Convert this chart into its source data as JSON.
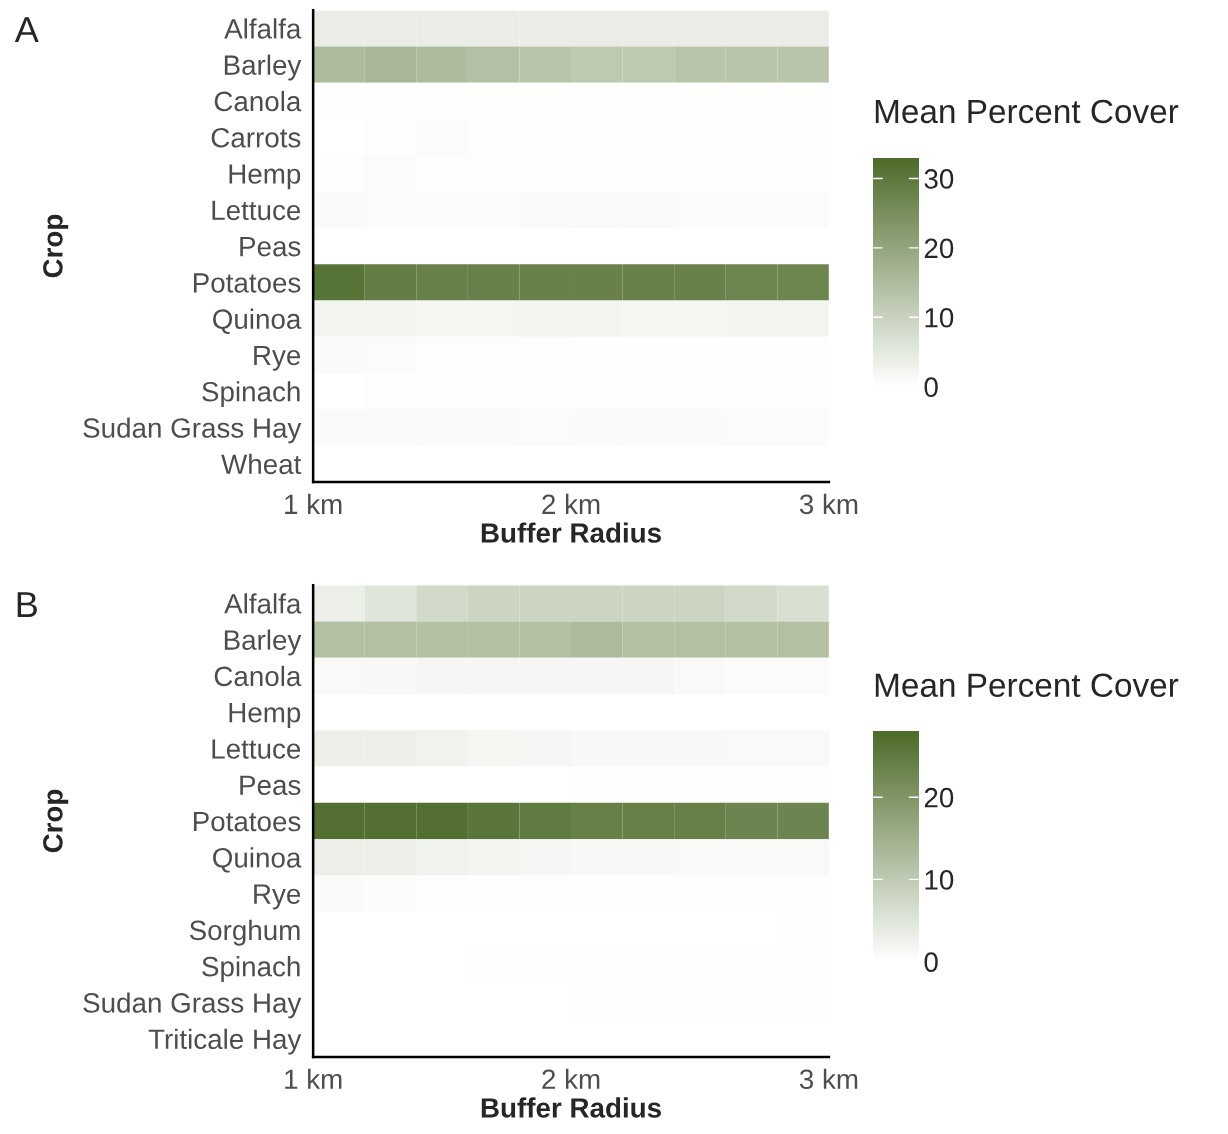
{
  "chart_data": [
    {
      "type": "heatmap",
      "title": "A",
      "xlabel": "Buffer Radius",
      "ylabel": "Crop",
      "clabel": "Mean Percent Cover",
      "x": [
        1.1,
        1.3,
        1.5,
        1.7,
        1.9,
        2.1,
        2.3,
        2.5,
        2.7,
        2.9
      ],
      "xlim": [
        1,
        3
      ],
      "xticks": [
        {
          "value": 1,
          "label": "1 km"
        },
        {
          "value": 2,
          "label": "2 km"
        },
        {
          "value": 3,
          "label": "3 km"
        }
      ],
      "y_categories": [
        "Alfalfa",
        "Barley",
        "Canola",
        "Carrots",
        "Hemp",
        "Lettuce",
        "Peas",
        "Potatoes",
        "Quinoa",
        "Rye",
        "Spinach",
        "Sudan Grass Hay",
        "Wheat"
      ],
      "cells": [
        [
          4,
          4,
          4,
          4,
          4,
          4,
          4,
          4,
          4,
          4
        ],
        [
          15,
          16,
          15,
          14,
          13,
          12,
          12,
          13,
          13,
          13
        ],
        [
          0.3,
          0.3,
          0.3,
          0.3,
          0.3,
          0.3,
          0.3,
          0.3,
          0.3,
          0.3
        ],
        [
          0,
          0.5,
          0.8,
          0.6,
          0.3,
          0.3,
          0.3,
          0.3,
          0.3,
          0.3
        ],
        [
          0.6,
          0.8,
          0.5,
          0.4,
          0.3,
          0.3,
          0.3,
          0.3,
          0.3,
          0.3
        ],
        [
          1,
          0.8,
          0.8,
          0.8,
          1,
          1.2,
          1.2,
          0.8,
          0.8,
          0.8
        ],
        [
          0,
          0,
          0,
          0,
          0,
          0,
          0,
          0,
          0,
          0
        ],
        [
          31,
          29,
          28,
          28,
          28,
          28,
          28,
          28,
          27,
          27
        ],
        [
          2.5,
          2.5,
          2,
          2,
          2.5,
          2.5,
          2,
          2,
          2.5,
          2.5
        ],
        [
          1,
          0.8,
          0.6,
          0.6,
          0.5,
          0.3,
          0.3,
          0.3,
          0.3,
          0.3
        ],
        [
          0,
          0.4,
          0.5,
          0.5,
          0.5,
          0.5,
          0.5,
          0.4,
          0.3,
          0.2
        ],
        [
          1,
          1,
          1,
          1,
          0.8,
          1,
          1,
          1,
          0.8,
          0.8
        ],
        [
          0,
          0,
          0,
          0,
          0,
          0,
          0,
          0,
          0,
          0
        ]
      ],
      "clim": [
        0,
        33
      ],
      "cticks": [
        0,
        10,
        20,
        30
      ],
      "colors": [
        "#ffffff",
        "#4d6b2a"
      ],
      "grid": false
    },
    {
      "type": "heatmap",
      "title": "B",
      "xlabel": "Buffer Radius",
      "ylabel": "Crop",
      "clabel": "Mean Percent Cover",
      "x": [
        1.1,
        1.3,
        1.5,
        1.7,
        1.9,
        2.1,
        2.3,
        2.5,
        2.7,
        2.9
      ],
      "xlim": [
        1,
        3
      ],
      "xticks": [
        {
          "value": 1,
          "label": "1 km"
        },
        {
          "value": 2,
          "label": "2 km"
        },
        {
          "value": 3,
          "label": "3 km"
        }
      ],
      "y_categories": [
        "Alfalfa",
        "Barley",
        "Canola",
        "Hemp",
        "Lettuce",
        "Peas",
        "Potatoes",
        "Quinoa",
        "Rye",
        "Sorghum",
        "Spinach",
        "Sudan Grass Hay",
        "Triticale Hay"
      ],
      "cells": [
        [
          3,
          5,
          7,
          8,
          8,
          8,
          8,
          8,
          7,
          6
        ],
        [
          12,
          12,
          12,
          12,
          12,
          13,
          12,
          12,
          12,
          12
        ],
        [
          1,
          1.2,
          1.5,
          1.5,
          1.5,
          1.5,
          1.5,
          1,
          0.7,
          0.7
        ],
        [
          0,
          0,
          0,
          0,
          0,
          0,
          0,
          0,
          0,
          0
        ],
        [
          3,
          3,
          2.5,
          1.8,
          1.5,
          1.2,
          1.2,
          1.2,
          1,
          1
        ],
        [
          0,
          0,
          0,
          0,
          0,
          0.3,
          0.3,
          0.3,
          0.3,
          0.3
        ],
        [
          27,
          27,
          27,
          26,
          25,
          24,
          24,
          24,
          23,
          23
        ],
        [
          3,
          3,
          2.5,
          2,
          1.5,
          1.2,
          1.2,
          1,
          1,
          1
        ],
        [
          0.8,
          0.6,
          0.4,
          0.3,
          0.3,
          0.3,
          0.3,
          0.3,
          0.3,
          0.3
        ],
        [
          0,
          0,
          0,
          0,
          0,
          0,
          0,
          0,
          0,
          0.2
        ],
        [
          0,
          0,
          0,
          0.3,
          0.3,
          0.3,
          0.3,
          0.3,
          0.3,
          0.3
        ],
        [
          0,
          0,
          0,
          0,
          0,
          0.3,
          0.3,
          0.3,
          0.3,
          0.3
        ],
        [
          0,
          0,
          0,
          0,
          0,
          0,
          0,
          0,
          0,
          0
        ]
      ],
      "clim": [
        0,
        28
      ],
      "cticks": [
        0,
        10,
        20
      ],
      "colors": [
        "#ffffff",
        "#4d6b2a"
      ],
      "grid": false
    }
  ]
}
